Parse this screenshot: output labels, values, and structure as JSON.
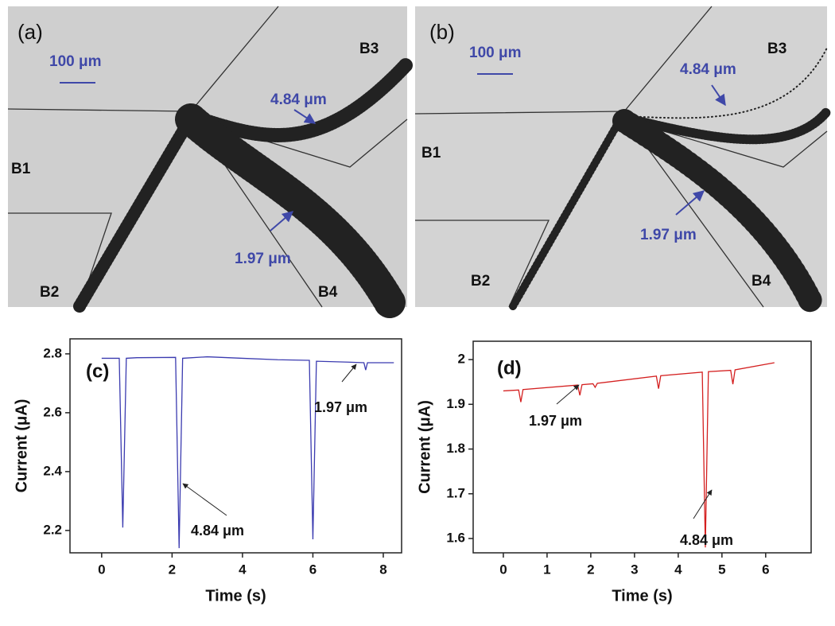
{
  "images": [
    {
      "label": "(a)",
      "scale_bar": "100 μm",
      "channels": [
        "B1",
        "B2",
        "B3",
        "B4"
      ],
      "annotations": [
        "4.84 μm",
        "1.97 μm"
      ]
    },
    {
      "label": "(b)",
      "scale_bar": "100 μm",
      "channels": [
        "B1",
        "B2",
        "B3",
        "B4"
      ],
      "annotations": [
        "4.84 μm",
        "1.97 μm"
      ]
    }
  ],
  "chart_data": [
    {
      "type": "line",
      "panel_label": "(c)",
      "xlabel": "Time (s)",
      "ylabel": "Current (μA)",
      "x": [
        0,
        0.5,
        0.6,
        0.7,
        1.0,
        2.1,
        2.2,
        2.3,
        3,
        4,
        5,
        5.9,
        6.0,
        6.1,
        7.0,
        7.45,
        7.5,
        7.55,
        8.3
      ],
      "series": [
        {
          "color": "#3b3bb0",
          "values": [
            2.785,
            2.785,
            2.21,
            2.785,
            2.787,
            2.788,
            2.14,
            2.785,
            2.79,
            2.785,
            2.78,
            2.778,
            2.17,
            2.775,
            2.772,
            2.77,
            2.745,
            2.77,
            2.77
          ]
        }
      ],
      "xlim": [
        -0.9,
        8.52
      ],
      "ylim": [
        2.124,
        2.851
      ],
      "xticks": [
        0,
        2,
        4,
        6,
        8
      ],
      "yticks": [
        2.2,
        2.4,
        2.6,
        2.8
      ],
      "annotations": [
        "1.97 μm",
        "4.84 μm"
      ]
    },
    {
      "type": "line",
      "panel_label": "(d)",
      "xlabel": "Time (s)",
      "ylabel": "Current (μA)",
      "x": [
        0,
        0.35,
        0.4,
        0.45,
        1.7,
        1.75,
        1.8,
        2.05,
        2.1,
        2.15,
        3.5,
        3.55,
        3.6,
        4.55,
        4.62,
        4.69,
        5.2,
        5.25,
        5.3,
        6.2
      ],
      "series": [
        {
          "color": "#d42020",
          "values": [
            1.93,
            1.932,
            1.905,
            1.933,
            1.943,
            1.92,
            1.944,
            1.946,
            1.938,
            1.947,
            1.963,
            1.935,
            1.964,
            1.972,
            1.58,
            1.973,
            1.976,
            1.945,
            1.977,
            1.993
          ]
        }
      ],
      "xlim": [
        -0.69,
        7.04
      ],
      "ylim": [
        1.568,
        2.041
      ],
      "xticks": [
        0,
        1,
        2,
        3,
        4,
        5,
        6
      ],
      "yticks": [
        1.6,
        1.7,
        1.8,
        1.9,
        2.0
      ],
      "annotations": [
        "1.97 μm",
        "4.84 μm"
      ]
    }
  ]
}
